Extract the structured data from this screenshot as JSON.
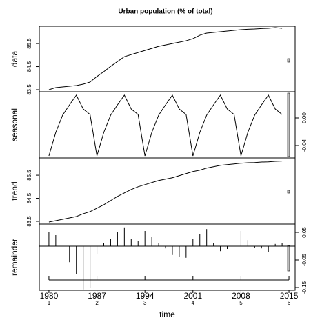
{
  "chart_data": [
    {
      "type": "line",
      "title": "Urban population (% of total)",
      "ylabel": "data",
      "x": [
        1980,
        1981,
        1982,
        1983,
        1984,
        1985,
        1986,
        1987,
        1988,
        1989,
        1990,
        1991,
        1992,
        1993,
        1994,
        1995,
        1996,
        1997,
        1998,
        1999,
        2000,
        2001,
        2002,
        2003,
        2004,
        2005,
        2006,
        2007,
        2008,
        2009,
        2010,
        2011,
        2012,
        2013,
        2014
      ],
      "values": [
        83.5,
        83.59,
        83.62,
        83.65,
        83.68,
        83.74,
        83.83,
        84.07,
        84.28,
        84.51,
        84.72,
        84.93,
        85.02,
        85.11,
        85.2,
        85.29,
        85.38,
        85.44,
        85.5,
        85.56,
        85.62,
        85.71,
        85.86,
        85.95,
        85.98,
        86.01,
        86.04,
        86.07,
        86.1,
        86.12,
        86.13,
        86.15,
        86.16,
        86.19,
        86.16
      ],
      "xlim": [
        1978.6,
        2015.9
      ],
      "ylim": [
        83.41,
        86.25
      ],
      "yticks": [
        83.5,
        84.5,
        85.5
      ],
      "color": "#000000"
    },
    {
      "type": "line",
      "ylabel": "seasonal",
      "x": [
        1980,
        1981,
        1982,
        1983,
        1984,
        1985,
        1986,
        1987,
        1988,
        1989,
        1990,
        1991,
        1992,
        1993,
        1994,
        1995,
        1996,
        1997,
        1998,
        1999,
        2000,
        2001,
        2002,
        2003,
        2004,
        2005,
        2006,
        2007,
        2008,
        2009,
        2010,
        2011,
        2012,
        2013,
        2014
      ],
      "values": [
        -0.055,
        -0.021,
        0.004,
        0.019,
        0.033,
        0.013,
        0.005,
        -0.055,
        -0.021,
        0.004,
        0.019,
        0.033,
        0.013,
        0.005,
        -0.055,
        -0.021,
        0.004,
        0.019,
        0.033,
        0.013,
        0.005,
        -0.055,
        -0.021,
        0.004,
        0.019,
        0.033,
        0.013,
        0.005,
        -0.055,
        -0.021,
        0.004,
        0.019,
        0.033,
        0.013,
        0.005
      ],
      "xlim": [
        1978.6,
        2015.9
      ],
      "ylim": [
        -0.058,
        0.038
      ],
      "yticks": [
        {
          "value": 0,
          "label": "0.00"
        },
        -0.04
      ],
      "color": "#000000"
    },
    {
      "type": "line",
      "ylabel": "trend",
      "x": [
        1980,
        1981,
        1982,
        1983,
        1984,
        1985,
        1986,
        1987,
        1988,
        1989,
        1990,
        1991,
        1992,
        1993,
        1994,
        1995,
        1996,
        1997,
        1998,
        1999,
        2000,
        2001,
        2002,
        2003,
        2004,
        2005,
        2006,
        2007,
        2008,
        2009,
        2010,
        2011,
        2012,
        2013,
        2014
      ],
      "values": [
        83.47,
        83.53,
        83.59,
        83.65,
        83.71,
        83.83,
        83.92,
        84.07,
        84.22,
        84.4,
        84.58,
        84.73,
        84.88,
        85.0,
        85.09,
        85.18,
        85.27,
        85.33,
        85.39,
        85.48,
        85.57,
        85.66,
        85.72,
        85.81,
        85.87,
        85.93,
        85.96,
        85.99,
        86.02,
        86.04,
        86.05,
        86.07,
        86.08,
        86.1,
        86.11
      ],
      "xlim": [
        1978.6,
        2015.9
      ],
      "ylim": [
        83.38,
        86.25
      ],
      "yticks": [
        83.5,
        84.5,
        85.5
      ],
      "color": "#000000"
    },
    {
      "type": "bar",
      "ylabel": "remainder",
      "xlabel": "time",
      "x": [
        1980,
        1981,
        1982,
        1983,
        1984,
        1985,
        1986,
        1987,
        1988,
        1989,
        1990,
        1991,
        1992,
        1993,
        1994,
        1995,
        1996,
        1997,
        1998,
        1999,
        2000,
        2001,
        2002,
        2003,
        2004,
        2005,
        2006,
        2007,
        2008,
        2009,
        2010,
        2011,
        2012,
        2013,
        2014
      ],
      "values": [
        0.05,
        0.04,
        0,
        -0.058,
        -0.1,
        -0.157,
        -0.15,
        -0.03,
        0.012,
        0.025,
        0.05,
        0.068,
        0.025,
        0.018,
        0.055,
        0.035,
        0.012,
        -0.008,
        -0.032,
        -0.038,
        -0.042,
        0.025,
        0.045,
        0.062,
        0.012,
        -0.018,
        -0.01,
        0,
        0.055,
        0.022,
        -0.005,
        -0.008,
        -0.022,
        0.008,
        0.012
      ],
      "xlim": [
        1978.6,
        2015.9
      ],
      "ylim": [
        -0.16,
        0.08
      ],
      "yticks": [
        0.05,
        -0.05,
        -0.15
      ],
      "xticks": [
        1980,
        1987,
        1994,
        2001,
        2008,
        2015
      ],
      "xtick_sublabels": [
        "1",
        "2",
        "3",
        "4",
        "5",
        "6"
      ],
      "color": "#000000"
    }
  ]
}
